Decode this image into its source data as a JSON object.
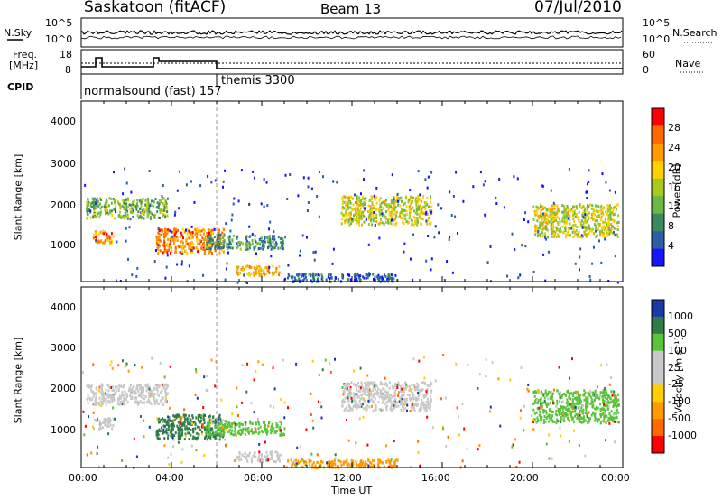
{
  "header": {
    "station": "Saskatoon (fitACF)",
    "beam": "Beam 13",
    "date": "07/Jul/2010"
  },
  "noise_panel": {
    "left_label": "N.Sky",
    "right_label": "N.Search",
    "left_ticks": [
      "10^5",
      "10^0"
    ],
    "right_ticks": [
      "10^5",
      "10^0"
    ]
  },
  "freq_panel": {
    "left_label_top": "Freq.",
    "left_label_bottom": "[MHz]",
    "left_ticks": [
      "18",
      "8"
    ],
    "right_ticks": [
      "60",
      "0"
    ],
    "right_label": "Nave"
  },
  "cpid_panel": {
    "label": "CPID",
    "modes": [
      "normalsound (fast) 157",
      "themis 3300"
    ]
  },
  "power_panel": {
    "ylabel": "Slant Range [km]",
    "yticks": [
      "4000",
      "3000",
      "2000",
      "1000"
    ],
    "colorbar_label": "Power [dB]",
    "colorbar_ticks": [
      "28",
      "24",
      "20",
      "16",
      "12",
      "8",
      "4"
    ],
    "colors": [
      "#ff0000",
      "#ff6a00",
      "#ff9a00",
      "#ffd000",
      "#a8c81e",
      "#6ab848",
      "#3a8a60",
      "#2a5fa8",
      "#1414ff"
    ]
  },
  "velocity_panel": {
    "ylabel": "Slant Range [km]",
    "yticks": [
      "4000",
      "3000",
      "2000",
      "1000"
    ],
    "colorbar_label": "Velocity [m s⁻¹]",
    "colorbar_ticks": [
      "1000",
      "500",
      "100",
      "25",
      "-25",
      "-100",
      "-500",
      "-1000"
    ],
    "colors": [
      "#1a3aa8",
      "#2e7d48",
      "#57c43a",
      "#c8c8c8",
      "#c8c8c8",
      "#ffd000",
      "#ff9a00",
      "#ff6a00",
      "#ff0000"
    ]
  },
  "xaxis": {
    "label": "Time UT",
    "ticks": [
      "00:00",
      "04:00",
      "08:00",
      "12:00",
      "16:00",
      "20:00",
      "00:00"
    ]
  },
  "chart_data": {
    "type": "heatmap",
    "x_range": [
      "00:00",
      "24:00"
    ],
    "y_range_km": [
      180,
      4600
    ],
    "power_colorbar": [
      0,
      30
    ],
    "velocity_colorbar": [
      -1000,
      1000
    ],
    "mode_change_time": "06:00",
    "regions": [
      {
        "t0": 0.2,
        "t1": 3.8,
        "r0": 1750,
        "r1": 2250,
        "power": 12,
        "velocity": 25
      },
      {
        "t0": 0.5,
        "t1": 1.4,
        "r0": 1150,
        "r1": 1450,
        "power": 24,
        "velocity": 25
      },
      {
        "t0": 3.3,
        "t1": 6.3,
        "r0": 900,
        "r1": 1500,
        "power": 24,
        "velocity": 500
      },
      {
        "t0": 5.5,
        "t1": 9.0,
        "r0": 1000,
        "r1": 1350,
        "power": 8,
        "velocity": 100
      },
      {
        "t0": 6.8,
        "t1": 8.8,
        "r0": 350,
        "r1": 600,
        "power": 20,
        "velocity": 25
      },
      {
        "t0": 11.5,
        "t1": 15.5,
        "r0": 1600,
        "r1": 2300,
        "power": 16,
        "velocity": 25
      },
      {
        "t0": 20.0,
        "t1": 23.8,
        "r0": 1300,
        "r1": 2100,
        "power": 16,
        "velocity": 100
      },
      {
        "t0": 9.0,
        "t1": 14.0,
        "r0": 200,
        "r1": 400,
        "power": 4,
        "velocity": -100
      }
    ]
  }
}
